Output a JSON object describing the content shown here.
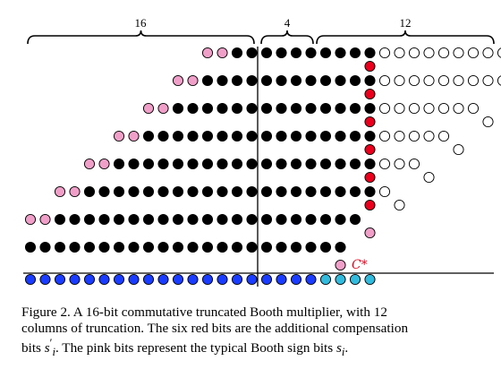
{
  "braces": {
    "left_label": "16",
    "middle_label": "4",
    "right_label": "12"
  },
  "annotations": {
    "carry_label": "C*"
  },
  "colors": {
    "black_bit": "#000000",
    "pink_bit": "#f0a0c8",
    "red_bit": "#e8001c",
    "white_bit": "#ffffff",
    "result_blue": "#1a3cff",
    "result_cyan": "#33bbdd",
    "carry_text": "#e8001c"
  },
  "dot_rows": [
    {
      "row": 0,
      "pink": [
        8,
        9
      ],
      "black": [
        10,
        11,
        12,
        13,
        14,
        15,
        16,
        17,
        18,
        19
      ],
      "white_main": [
        20,
        21,
        22,
        23,
        24,
        25,
        26,
        27,
        28,
        29,
        30
      ],
      "white_extra": [
        31
      ],
      "red": [
        19
      ]
    },
    {
      "row": 1,
      "pink": [
        6,
        7
      ],
      "black": [
        8,
        9,
        10,
        11,
        12,
        13,
        14,
        15,
        16,
        17,
        18,
        19
      ],
      "white_main": [
        20,
        21,
        22,
        23,
        24,
        25,
        26,
        27,
        28
      ],
      "white_extra": [
        29
      ],
      "red": [
        19
      ]
    },
    {
      "row": 2,
      "pink": [
        4,
        5
      ],
      "black": [
        6,
        7,
        8,
        9,
        10,
        11,
        12,
        13,
        14,
        15,
        16,
        17,
        18,
        19
      ],
      "white_main": [
        20,
        21,
        22,
        23,
        24,
        25,
        26
      ],
      "white_extra": [
        27
      ],
      "red": [
        19
      ]
    },
    {
      "row": 3,
      "pink": [
        2,
        3
      ],
      "black": [
        4,
        5,
        6,
        7,
        8,
        9,
        10,
        11,
        12,
        13,
        14,
        15,
        16,
        17,
        18,
        19
      ],
      "white_main": [
        20,
        21,
        22,
        23,
        24
      ],
      "white_extra": [
        25
      ],
      "red": [
        19
      ]
    },
    {
      "row": 4,
      "pink": [
        0,
        1
      ],
      "black": [
        2,
        3,
        4,
        5,
        6,
        7,
        8,
        9,
        10,
        11,
        12,
        13,
        14,
        15,
        16,
        17,
        18,
        19
      ],
      "white_main": [
        20,
        21,
        22
      ],
      "white_extra": [
        23
      ],
      "red": [
        19
      ]
    },
    {
      "row": 5,
      "pink": [
        -2,
        -1
      ],
      "black": [
        0,
        1,
        2,
        3,
        4,
        5,
        6,
        7,
        8,
        9,
        10,
        11,
        12,
        13,
        14,
        15,
        16,
        17,
        18,
        19
      ],
      "white_main": [
        20
      ],
      "white_extra": [
        21
      ],
      "red": [
        19
      ]
    },
    {
      "row": 6,
      "pink": [
        -4,
        -3
      ],
      "black": [
        -2,
        -1,
        0,
        1,
        2,
        3,
        4,
        5,
        6,
        7,
        8,
        9,
        10,
        11,
        12,
        13,
        14,
        15,
        16,
        17,
        18
      ],
      "white_main": [],
      "white_extra": [],
      "red": [],
      "pink_tail": [
        19
      ]
    },
    {
      "row": 7,
      "pink": [],
      "black": [
        -4,
        -3,
        -2,
        -1,
        0,
        1,
        2,
        3,
        4,
        5,
        6,
        7,
        8,
        9,
        10,
        11,
        12,
        13,
        14,
        15,
        16,
        17
      ],
      "white_main": [],
      "white_extra": [],
      "red": []
    }
  ],
  "caption": {
    "line1": "Figure 2. A 16-bit commutative truncated Booth multiplier, with 12",
    "line2": "columns of truncation. The six red bits are the additional compensation",
    "line3_pre": "bits ",
    "line3_sym1": "s",
    "line3_sym1_sup": "′",
    "line3_sym1_sub": "i",
    "line3_mid": ". The pink bits represent the typical Booth sign bits ",
    "line3_sym2": "s",
    "line3_sym2_sub": "i",
    "line3_post": "."
  }
}
